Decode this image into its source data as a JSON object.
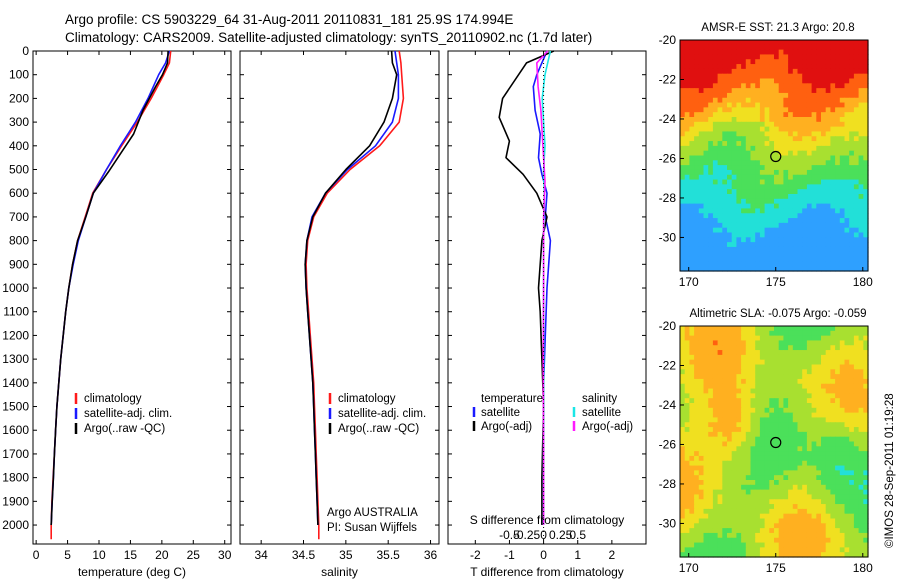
{
  "header": {
    "line1": "Argo profile: CS 5903229_64 31-Aug-2011 20110831_181 25.9S 174.994E",
    "line2": "Climatology: CARS2009. Satellite-adjusted climatology: synTS_20110902.nc (1.7d later)"
  },
  "credit": "©IMOS 28-Sep-2011 01:19:28",
  "colors": {
    "climatology": "#ff1a1a",
    "satellite": "#1a1aff",
    "argo": "#000000",
    "salinity_satellite": "#1ae6e6",
    "salinity_argo": "#ff1aff",
    "marker": "#000000"
  },
  "chart_data": [
    {
      "type": "line",
      "panel": "temperature",
      "xlabel": "temperature (deg C)",
      "ylabel": "",
      "xlim": [
        -0.5,
        31
      ],
      "ylim": [
        2080,
        0
      ],
      "xticks": [
        "0",
        "5",
        "10",
        "15",
        "20",
        "25",
        "30"
      ],
      "yticks": [
        "0",
        "100",
        "200",
        "300",
        "400",
        "500",
        "600",
        "700",
        "800",
        "900",
        "1000",
        "1100",
        "1200",
        "1300",
        "1400",
        "1500",
        "1600",
        "1700",
        "1800",
        "1900",
        "2000"
      ],
      "ytick_values": [
        0,
        100,
        200,
        300,
        400,
        500,
        600,
        700,
        800,
        900,
        1000,
        1100,
        1200,
        1300,
        1400,
        1500,
        1600,
        1700,
        1800,
        1900,
        2000
      ],
      "xtick_values": [
        0,
        5,
        10,
        15,
        20,
        25,
        30
      ],
      "legend": [
        "climatology",
        "satellite-adj. clim.",
        "Argo(..raw -QC)"
      ],
      "legend_location": "lower-middle",
      "series": [
        {
          "name": "climatology",
          "x": [
            21.4,
            21.2,
            20.3,
            18.3,
            16.1,
            13.6,
            11.2,
            9.0,
            7.8,
            6.6,
            5.8,
            5.2,
            4.7,
            4.3,
            3.9,
            3.6,
            3.3,
            3.1,
            2.9,
            2.7,
            2.5,
            2.4,
            2.4
          ],
          "y": [
            0,
            50,
            100,
            200,
            300,
            400,
            500,
            600,
            700,
            800,
            900,
            1000,
            1100,
            1200,
            1300,
            1400,
            1500,
            1600,
            1700,
            1800,
            1900,
            2000,
            2060
          ]
        },
        {
          "name": "satellite-adj. clim.",
          "x": [
            21.2,
            20.6,
            19.5,
            17.8,
            15.8,
            13.4,
            11.2,
            9.1,
            7.9,
            6.7,
            5.9,
            5.2,
            4.7,
            4.3,
            3.9,
            3.6,
            3.3,
            3.1,
            2.9,
            2.75,
            2.55,
            2.4
          ],
          "y": [
            0,
            50,
            100,
            200,
            300,
            400,
            500,
            600,
            700,
            800,
            900,
            1000,
            1100,
            1200,
            1300,
            1400,
            1500,
            1600,
            1700,
            1800,
            1900,
            2000
          ]
        },
        {
          "name": "Argo(..raw -QC)",
          "x": [
            21.0,
            20.9,
            20.1,
            19.0,
            17.0,
            15.5,
            13.5,
            11.5,
            9.1,
            7.9,
            6.6,
            5.8,
            5.2,
            4.7,
            4.3,
            3.9,
            3.6,
            3.3,
            3.1,
            2.9,
            2.75,
            2.55,
            2.4
          ],
          "y": [
            0,
            50,
            100,
            150,
            250,
            350,
            430,
            510,
            600,
            700,
            800,
            900,
            1000,
            1100,
            1200,
            1300,
            1400,
            1500,
            1600,
            1700,
            1800,
            1900,
            2000
          ]
        }
      ]
    },
    {
      "type": "line",
      "panel": "salinity",
      "xlabel": "salinity",
      "xlim": [
        33.75,
        36.1
      ],
      "ylim": [
        2080,
        0
      ],
      "xticks": [
        "34",
        "34.5",
        "35",
        "35.5",
        "36"
      ],
      "xtick_values": [
        34,
        34.5,
        35,
        35.5,
        36
      ],
      "legend": [
        "climatology",
        "satellite-adj. clim.",
        "Argo(..raw -QC)"
      ],
      "legend_location": "lower-middle",
      "annotation": [
        "Argo AUSTRALIA",
        "PI: Susan Wijffels"
      ],
      "series": [
        {
          "name": "climatology",
          "x": [
            35.63,
            35.65,
            35.66,
            35.68,
            35.63,
            35.4,
            35.05,
            34.78,
            34.62,
            34.55,
            34.53,
            34.54,
            34.56,
            34.58,
            34.6,
            34.62,
            34.63,
            34.64,
            34.65,
            34.66,
            34.67,
            34.68,
            34.68
          ],
          "y": [
            0,
            50,
            100,
            200,
            300,
            400,
            500,
            600,
            700,
            800,
            900,
            1000,
            1100,
            1200,
            1300,
            1400,
            1500,
            1600,
            1700,
            1800,
            1900,
            2000,
            2060
          ]
        },
        {
          "name": "satellite-adj. clim.",
          "x": [
            35.58,
            35.6,
            35.62,
            35.62,
            35.55,
            35.35,
            35.02,
            34.76,
            34.6,
            34.54,
            34.52,
            34.53,
            34.55,
            34.57,
            34.59,
            34.61,
            34.62,
            34.63,
            34.64,
            34.65,
            34.66,
            34.67
          ],
          "y": [
            0,
            50,
            100,
            200,
            300,
            400,
            500,
            600,
            700,
            800,
            900,
            1000,
            1100,
            1200,
            1300,
            1400,
            1500,
            1600,
            1700,
            1800,
            1900,
            2000
          ]
        },
        {
          "name": "Argo(..raw -QC)",
          "x": [
            35.54,
            35.55,
            35.6,
            35.55,
            35.45,
            35.28,
            35.0,
            34.76,
            34.61,
            34.54,
            34.52,
            34.53,
            34.55,
            34.57,
            34.59,
            34.61,
            34.62,
            34.63,
            34.64,
            34.65,
            34.66,
            34.67
          ],
          "y": [
            0,
            50,
            100,
            200,
            300,
            400,
            500,
            600,
            700,
            800,
            900,
            1000,
            1100,
            1200,
            1300,
            1400,
            1500,
            1600,
            1700,
            1800,
            1900,
            2000
          ]
        }
      ]
    },
    {
      "type": "line",
      "panel": "difference",
      "xlabel": "T difference from climatology",
      "xlabel_top": "S difference from climatology",
      "xlim": [
        -2.8,
        3.0
      ],
      "ylim": [
        2080,
        0
      ],
      "xticks": [
        "-2",
        "-1",
        "0",
        "1",
        "2"
      ],
      "xtick_values": [
        -2,
        -1,
        0,
        1,
        2
      ],
      "sticks": [
        "-0.5",
        "-0.25",
        "0",
        "0.25",
        "0.5"
      ],
      "stick_values": [
        -0.5,
        -0.25,
        0,
        0.25,
        0.5
      ],
      "legend_temperature": [
        "temperature",
        "satellite",
        "Argo(-adj)"
      ],
      "legend_salinity": [
        "salinity",
        "satellite",
        "Argo(-adj)"
      ],
      "series": [
        {
          "name": "temperature satellite",
          "x": [
            0.1,
            -0.2,
            -0.3,
            -0.25,
            -0.1,
            -0.15,
            -0.05,
            0.1,
            0.05,
            0.2,
            0.1,
            0.05,
            0.0,
            0.0,
            0.0,
            0.0
          ],
          "y": [
            0,
            100,
            150,
            250,
            350,
            450,
            520,
            600,
            700,
            800,
            1000,
            1200,
            1400,
            1600,
            1800,
            2000
          ]
        },
        {
          "name": "temperature Argo(-adj)",
          "x": [
            0.3,
            -0.5,
            -1.2,
            -1.3,
            -1.0,
            -1.1,
            -0.6,
            -0.2,
            0.1,
            -0.05,
            -0.15,
            -0.1,
            -0.05,
            0.0,
            -0.05,
            -0.05
          ],
          "y": [
            0,
            50,
            200,
            280,
            380,
            450,
            520,
            600,
            700,
            800,
            1000,
            1100,
            1300,
            1500,
            1800,
            2000
          ]
        },
        {
          "name": "salinity satellite",
          "x": [
            0.1,
            0.02,
            -0.02,
            0.0,
            0.02,
            0.0,
            0.01,
            0.0,
            0.0,
            0.0,
            0.0,
            0.0,
            0.0
          ],
          "y": [
            0,
            100,
            200,
            300,
            400,
            500,
            600,
            800,
            1000,
            1200,
            1500,
            1800,
            2000
          ]
        },
        {
          "name": "salinity Argo(-adj)",
          "x": [
            0.06,
            -0.1,
            -0.08,
            -0.04,
            -0.02,
            0.0,
            0.02,
            0.0,
            0.0,
            -0.005,
            0.0,
            0.0
          ],
          "y": [
            0,
            50,
            150,
            250,
            350,
            450,
            550,
            700,
            1000,
            1300,
            1700,
            2000
          ]
        }
      ]
    },
    {
      "type": "heatmap",
      "panel": "map-sst",
      "title": "AMSR-E SST: 21.3 Argo: 20.8",
      "xlim": [
        169.5,
        180.3
      ],
      "ylim": [
        -31.7,
        -20
      ],
      "xticks": [
        "170",
        "175",
        "180"
      ],
      "xtick_values": [
        170,
        175,
        180
      ],
      "yticks": [
        "-20",
        "-22",
        "-24",
        "-26",
        "-28",
        "-30"
      ],
      "ytick_values": [
        -20,
        -22,
        -24,
        -26,
        -28,
        -30
      ],
      "marker": {
        "lon": 175.0,
        "lat": -25.9
      }
    },
    {
      "type": "heatmap",
      "panel": "map-sla",
      "title": "Altimetric SLA: -0.075 Argo: -0.059",
      "xlim": [
        169.5,
        180.3
      ],
      "ylim": [
        -31.7,
        -20
      ],
      "xticks": [
        "170",
        "175",
        "180"
      ],
      "xtick_values": [
        170,
        175,
        180
      ],
      "yticks": [
        "-20",
        "-22",
        "-24",
        "-26",
        "-28",
        "-30"
      ],
      "ytick_values": [
        -20,
        -22,
        -24,
        -26,
        -28,
        -30
      ],
      "marker": {
        "lon": 175.0,
        "lat": -25.9
      }
    }
  ]
}
